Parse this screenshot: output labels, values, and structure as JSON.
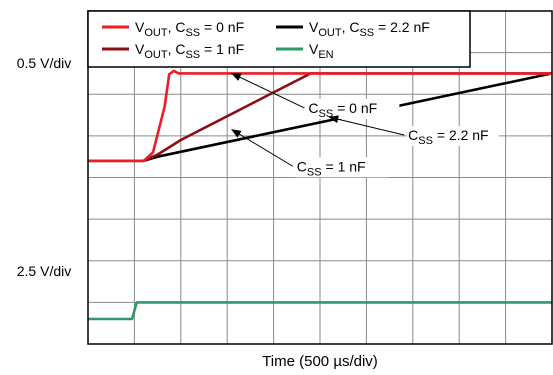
{
  "chart_data": {
    "type": "line",
    "xlabel": "Time (500 µs/div)",
    "x_divisions": 10,
    "y_divisions": 8,
    "xlim": [
      0,
      10
    ],
    "ylim": [
      0,
      8
    ],
    "grid": true,
    "y_scale_labels": [
      {
        "text": "0.5 V/div",
        "y": 6.75
      },
      {
        "text": "2.5 V/div",
        "y": 1.75
      }
    ],
    "legend": {
      "position": "top-left",
      "entries": [
        {
          "main": "V",
          "sub": "OUT",
          "mid": ", C",
          "sub2": "SS",
          "tail": " = 0 nF",
          "color": "#ee1c25"
        },
        {
          "main": "V",
          "sub": "OUT",
          "mid": ", C",
          "sub2": "SS",
          "tail": " = 2.2 nF",
          "color": "#000000"
        },
        {
          "main": "V",
          "sub": "OUT",
          "mid": ", C",
          "sub2": "SS",
          "tail": " = 1 nF",
          "color": "#8b0f12"
        },
        {
          "main": "V",
          "sub": "EN",
          "mid": "",
          "sub2": "",
          "tail": "",
          "color": "#2e9a6a"
        }
      ]
    },
    "series": [
      {
        "color": "#000000",
        "x": [
          0,
          1.2,
          1.5,
          10
        ],
        "y": [
          4.4,
          4.4,
          4.5,
          6.5
        ]
      },
      {
        "color": "#8b0f12",
        "x": [
          0,
          1.2,
          1.5,
          2.0,
          4.8,
          10
        ],
        "y": [
          4.4,
          4.4,
          4.55,
          4.9,
          6.5,
          6.5
        ]
      },
      {
        "color": "#ee1c25",
        "x": [
          0,
          1.2,
          1.4,
          1.65,
          1.75,
          1.85,
          1.95,
          10
        ],
        "y": [
          4.4,
          4.4,
          4.6,
          5.7,
          6.48,
          6.56,
          6.5,
          6.5
        ]
      },
      {
        "color": "#2e9a6a",
        "x": [
          0,
          0.95,
          1.05,
          10
        ],
        "y": [
          0.6,
          0.6,
          1.0,
          1.0
        ]
      }
    ],
    "annotations": [
      {
        "main": "C",
        "sub": "SS",
        "tail": " = 0 nF",
        "text_x": 4.75,
        "text_y": 5.55,
        "arrow_to_x": 3.1,
        "arrow_to_y": 6.5
      },
      {
        "main": "C",
        "sub": "SS",
        "tail": " = 2.2 nF",
        "text_x": 6.9,
        "text_y": 4.9,
        "arrow_to_x": 5.2,
        "arrow_to_y": 5.45
      },
      {
        "main": "C",
        "sub": "SS",
        "tail": " = 1 nF",
        "text_x": 4.5,
        "text_y": 4.15,
        "arrow_to_x": 3.1,
        "arrow_to_y": 5.15
      }
    ]
  }
}
